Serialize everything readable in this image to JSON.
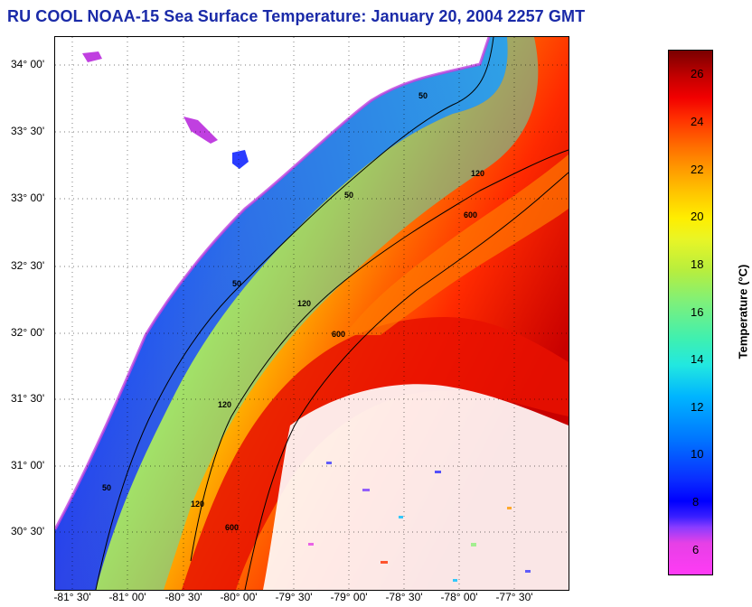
{
  "title": "RU COOL  NOAA-15  Sea Surface Temperature:  January 20, 2004 2257 GMT",
  "latitude_labels": [
    "34° 00'",
    "33° 30'",
    "33° 00'",
    "32° 30'",
    "32° 00'",
    "31° 30'",
    "31° 00'",
    "30° 30'"
  ],
  "longitude_labels": [
    "-81° 30'",
    "-81° 00'",
    "-80° 30'",
    "-80° 00'",
    "-79° 30'",
    "-79° 00'",
    "-78° 30'",
    "-78° 00'",
    "-77° 30'"
  ],
  "contour_labels": [
    "50",
    "120",
    "600"
  ],
  "colorbar": {
    "title": "Temperature (°C)",
    "ticks": [
      "26",
      "24",
      "22",
      "20",
      "18",
      "16",
      "14",
      "12",
      "10",
      "8",
      "6"
    ],
    "range": [
      5,
      27
    ]
  },
  "colors": {
    "title": "#1a2aa8",
    "land": "#ffffff",
    "contour": "#000000"
  }
}
